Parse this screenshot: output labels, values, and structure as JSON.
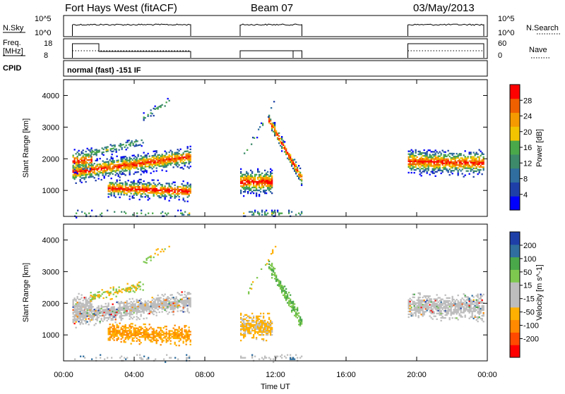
{
  "header": {
    "station": "Fort Hays West (fitACF)",
    "beam": "Beam 07",
    "date": "03/May/2013"
  },
  "strip_labels": {
    "nsky": "N.Sky",
    "nsky_ticks": [
      "10^5",
      "10^0"
    ],
    "nsearch": "N.Search",
    "nsearch_ticks": [
      "10^5",
      "10^0"
    ],
    "freq": "Freq.",
    "freq_unit": "[MHz]",
    "freq_ticks": [
      "18",
      "8"
    ],
    "nave": "Nave",
    "nave_ticks": [
      "60",
      "0"
    ],
    "cpid": "CPID",
    "cpid_value": "normal (fast) -151 IF"
  },
  "colors": {
    "power_scale": [
      "#0000ff",
      "#1f3fa8",
      "#2f6e9e",
      "#3c8a6a",
      "#4aa84a",
      "#f2c400",
      "#f59a00",
      "#f06000",
      "#ff0000"
    ],
    "velocity_scale": [
      "#ff0000",
      "#ff4a00",
      "#ff8a00",
      "#ffb000",
      "#bdbdbd",
      "#bdbdbd",
      "#7ec850",
      "#4aa84a",
      "#2f6e9e",
      "#1f3fa8"
    ],
    "ground_scatter": "#bdbdbd"
  },
  "chart_data": [
    {
      "type": "heatmap",
      "name": "power",
      "xlabel": "Time UT",
      "ylabel": "Slant Range [km]",
      "x_ticks": [
        "00:00",
        "04:00",
        "08:00",
        "12:00",
        "16:00",
        "20:00",
        "00:00"
      ],
      "x_range_hours": [
        0,
        24
      ],
      "y_ticks": [
        "1000",
        "2000",
        "3000",
        "4000"
      ],
      "y_range_km": [
        180,
        4500
      ],
      "colorbar_label": "Power [dB]",
      "colorbar_ticks": [
        "4",
        "8",
        "12",
        "16",
        "20",
        "24",
        "28"
      ],
      "colorbar_range": [
        0,
        32
      ],
      "data_windows_hours": [
        [
          0.5,
          7.2
        ],
        [
          10.0,
          13.5
        ],
        [
          19.5,
          23.8
        ]
      ]
    },
    {
      "type": "heatmap",
      "name": "velocity",
      "xlabel": "Time UT",
      "ylabel": "Slant Range [km]",
      "x_ticks": [
        "00:00",
        "04:00",
        "08:00",
        "12:00",
        "16:00",
        "20:00",
        "00:00"
      ],
      "x_range_hours": [
        0,
        24
      ],
      "y_ticks": [
        "1000",
        "2000",
        "3000",
        "4000"
      ],
      "y_range_km": [
        180,
        4500
      ],
      "colorbar_label": "Velocity [m s^-1]",
      "colorbar_ticks": [
        "200",
        "100",
        "50",
        "15",
        "-15",
        "-50",
        "-100",
        "-200"
      ]
    }
  ]
}
